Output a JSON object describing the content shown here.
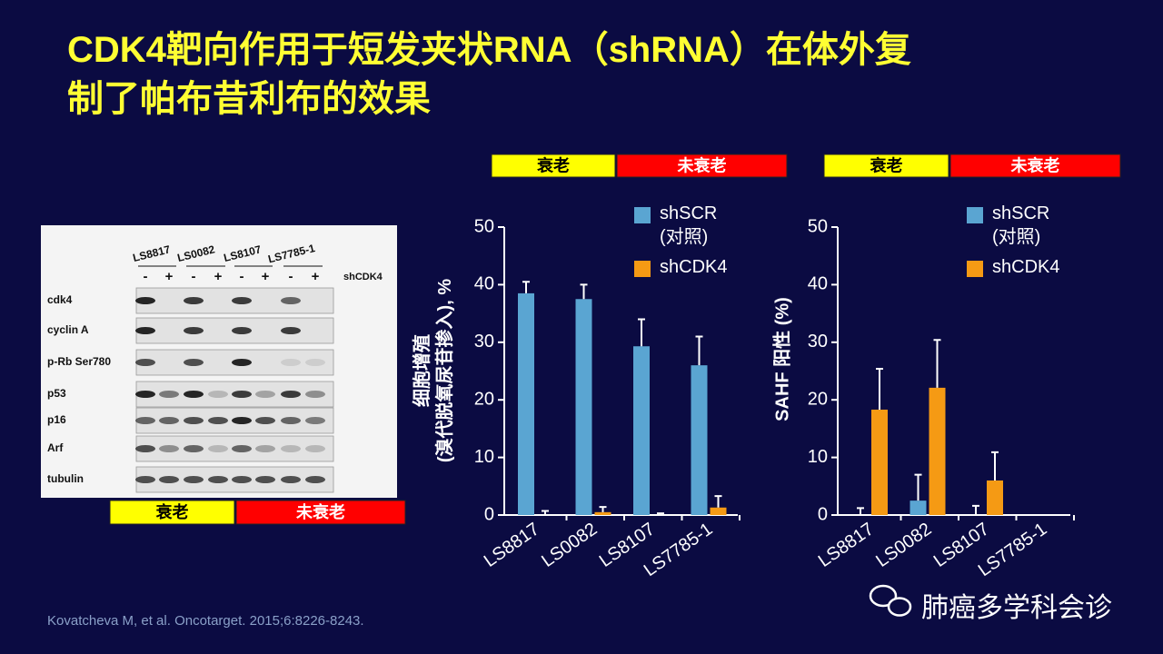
{
  "title": "CDK4靶向作用于短发夹状RNA（shRNA）在体外复\n制了帕布昔利布的效果",
  "group_labels": [
    "衰老",
    "未衰老"
  ],
  "blot": {
    "cell_lines": [
      "LS8817",
      "LS0082",
      "LS8107",
      "LS7785-1"
    ],
    "signs": [
      "-",
      "+"
    ],
    "treatment_label": "shCDK4",
    "proteins": [
      "cdk4",
      "cyclin A",
      "p-Rb Ser780",
      "p53",
      "p16",
      "Arf",
      "tubulin"
    ]
  },
  "citation": "Kovatcheva M, et al. Oncotarget. 2015;6:8226-8243.",
  "watermark": "肺癌多学科会诊",
  "chart_data": [
    {
      "type": "bar",
      "ylabel": "细胞增殖\n(溴代脱氧尿苷掺入), %",
      "categories": [
        "LS8817",
        "LS0082",
        "LS8107",
        "LS7785-1"
      ],
      "ylim": [
        0,
        50
      ],
      "yticks": [
        0,
        10,
        20,
        30,
        40,
        50
      ],
      "series": [
        {
          "name": "shSCR\n(对照)",
          "color": "#5aa5d2",
          "values": [
            38.5,
            37.5,
            29.3,
            26
          ],
          "errors": [
            2,
            2.5,
            4.7,
            5
          ]
        },
        {
          "name": "shCDK4",
          "color": "#f59a14",
          "values": [
            0,
            0.5,
            0,
            1.3
          ],
          "errors": [
            0.7,
            0.9,
            0.3,
            2
          ]
        }
      ]
    },
    {
      "type": "bar",
      "ylabel": "SAHF 阳性 (%)",
      "categories": [
        "LS8817",
        "LS0082",
        "LS8107",
        "LS7785-1"
      ],
      "ylim": [
        0,
        50
      ],
      "yticks": [
        0,
        10,
        20,
        30,
        40,
        50
      ],
      "series": [
        {
          "name": "shSCR\n(对照)",
          "color": "#5aa5d2",
          "values": [
            0,
            2.5,
            0,
            0
          ],
          "errors": [
            1.2,
            4.5,
            1.6,
            0
          ]
        },
        {
          "name": "shCDK4",
          "color": "#f59a14",
          "values": [
            18.3,
            22.1,
            6,
            0
          ],
          "errors": [
            7.1,
            8.3,
            4.9,
            0
          ]
        }
      ]
    }
  ]
}
